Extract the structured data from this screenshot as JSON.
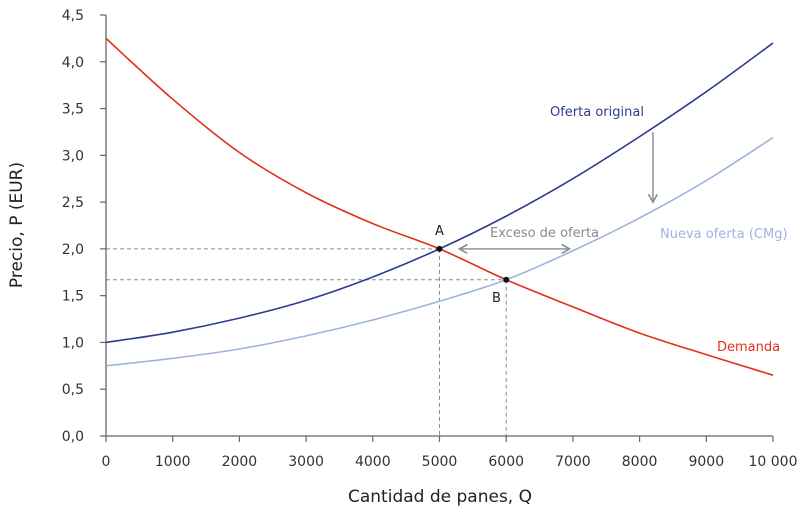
{
  "chart_data": {
    "type": "line",
    "title": "",
    "xlabel": "Cantidad de panes, Q",
    "ylabel": "Precio, P (EUR)",
    "xlim": [
      0,
      10000
    ],
    "ylim": [
      0,
      4.5
    ],
    "x_ticks": [
      "0",
      "1000",
      "2000",
      "3000",
      "4000",
      "5000",
      "6000",
      "7000",
      "8000",
      "9000",
      "10 000"
    ],
    "y_ticks": [
      "0,0",
      "0,5",
      "1,0",
      "1,5",
      "2,0",
      "2,5",
      "3,0",
      "3,5",
      "4,0",
      "4,5"
    ],
    "grid": false,
    "series": [
      {
        "name": "Oferta original",
        "color": "#2e3c8c",
        "x": [
          0,
          1000,
          2000,
          3000,
          4000,
          5000,
          6000,
          7000,
          8000,
          9000,
          10000
        ],
        "values": [
          1.0,
          1.11,
          1.26,
          1.45,
          1.7,
          2.0,
          2.35,
          2.75,
          3.2,
          3.68,
          4.2
        ]
      },
      {
        "name": "Nueva oferta (CMg)",
        "color": "#9fb3dd",
        "x": [
          0,
          1000,
          2000,
          3000,
          4000,
          5000,
          6000,
          7000,
          8000,
          9000,
          10000
        ],
        "values": [
          0.75,
          0.83,
          0.93,
          1.07,
          1.24,
          1.44,
          1.67,
          1.98,
          2.33,
          2.73,
          3.19
        ]
      },
      {
        "name": "Demanda",
        "color": "#e0301e",
        "x": [
          0,
          1000,
          2000,
          3000,
          4000,
          5000,
          6000,
          7000,
          8000,
          9000,
          10000
        ],
        "values": [
          4.25,
          3.6,
          3.03,
          2.6,
          2.27,
          2.0,
          1.67,
          1.38,
          1.1,
          0.87,
          0.65
        ]
      }
    ],
    "points": [
      {
        "label": "A",
        "x": 5000,
        "y": 2.0
      },
      {
        "label": "B",
        "x": 6000,
        "y": 1.67
      }
    ],
    "annotations": [
      {
        "text": "Exceso de oferta",
        "type": "double-arrow",
        "x_from": 5300,
        "x_to": 6950,
        "y": 2.0
      },
      {
        "text": "",
        "type": "down-arrow",
        "x": 8200,
        "y_from": 3.25,
        "y_to": 2.5
      }
    ]
  },
  "labels": {
    "supply_original": "Oferta original",
    "supply_new": "Nueva oferta (CMg)",
    "demand": "Demanda",
    "excess": "Exceso de oferta",
    "point_a": "A",
    "point_b": "B",
    "xlabel": "Cantidad de panes, Q",
    "ylabel": "Precio, P (EUR)"
  }
}
